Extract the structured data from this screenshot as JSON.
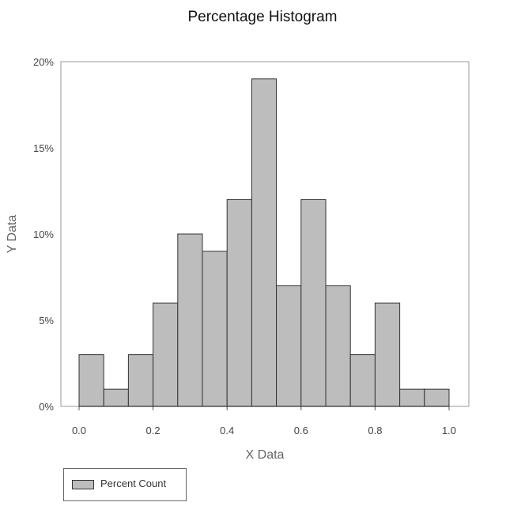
{
  "chart_data": {
    "type": "bar",
    "title": "Percentage Histogram",
    "xlabel": "X Data",
    "ylabel": "Y Data",
    "bin_edges": [
      0.0,
      0.0667,
      0.1333,
      0.2,
      0.2667,
      0.3333,
      0.4,
      0.4667,
      0.5333,
      0.6,
      0.6667,
      0.7333,
      0.8,
      0.8667,
      0.9333,
      1.0
    ],
    "series": [
      {
        "name": "Percent Count",
        "values": [
          3,
          1,
          3,
          6,
          10,
          9,
          12,
          19,
          7,
          12,
          7,
          3,
          6,
          1,
          1
        ]
      }
    ],
    "xlim": [
      0.0,
      1.0
    ],
    "ylim": [
      0,
      20
    ],
    "x_ticks": [
      "0.0",
      "0.2",
      "0.4",
      "0.6",
      "0.8",
      "1.0"
    ],
    "x_tick_values": [
      0.0,
      0.2,
      0.4,
      0.6,
      0.8,
      1.0
    ],
    "y_ticks": [
      "0%",
      "5%",
      "10%",
      "15%",
      "20%"
    ],
    "y_tick_values": [
      0,
      5,
      10,
      15,
      20
    ],
    "grid": false,
    "legend_position": "bottom-left",
    "bar_color": "#bdbdbd",
    "bar_edge_color": "#333333"
  }
}
